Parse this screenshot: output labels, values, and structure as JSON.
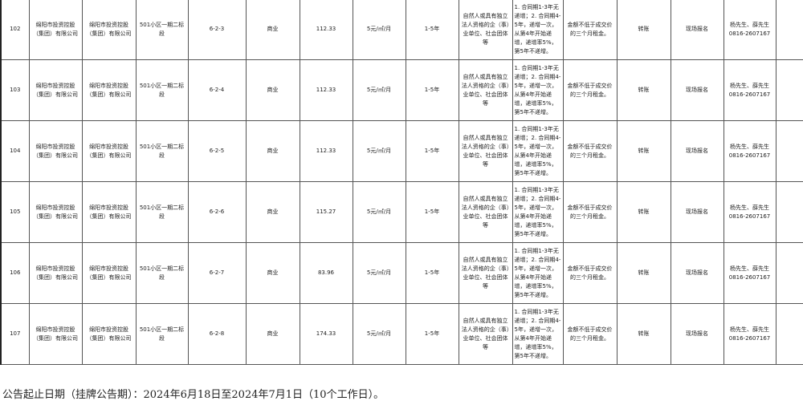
{
  "rows": [
    {
      "no": "102",
      "lessor": "绵阳市投资控股（集团）有限公司",
      "owner": "绵阳市投资控股（集团）有限公司",
      "project": "501小区一期二标段",
      "unit": "6-2-3",
      "use": "商业",
      "area": "112.33",
      "price": "5元/㎡/月",
      "term": "1-5年",
      "qualification": "自然人或具有独立法人资格的企（事）业单位、社会团体等",
      "increase": "1. 合同期1-3年无递增；2. 合同期4-5年，递增一次，从第4年开始递增，递增率5%，第5年不递增。",
      "deposit": "金额不低于成交价的三个月租金。",
      "mode": "转账",
      "signup": "现场报名",
      "contact": "杨先生、薛先生 0816-2607167"
    },
    {
      "no": "103",
      "lessor": "绵阳市投资控股（集团）有限公司",
      "owner": "绵阳市投资控股（集团）有限公司",
      "project": "501小区一期二标段",
      "unit": "6-2-4",
      "use": "商业",
      "area": "112.33",
      "price": "5元/㎡/月",
      "term": "1-5年",
      "qualification": "自然人或具有独立法人资格的企（事）业单位、社会团体等",
      "increase": "1. 合同期1-3年无递增；2. 合同期4-5年，递增一次，从第4年开始递增，递增率5%，第5年不递增。",
      "deposit": "金额不低于成交价的三个月租金。",
      "mode": "转账",
      "signup": "现场报名",
      "contact": "杨先生、薛先生 0816-2607167"
    },
    {
      "no": "104",
      "lessor": "绵阳市投资控股（集团）有限公司",
      "owner": "绵阳市投资控股（集团）有限公司",
      "project": "501小区一期二标段",
      "unit": "6-2-5",
      "use": "商业",
      "area": "112.33",
      "price": "5元/㎡/月",
      "term": "1-5年",
      "qualification": "自然人或具有独立法人资格的企（事）业单位、社会团体等",
      "increase": "1. 合同期1-3年无递增；2. 合同期4-5年，递增一次，从第4年开始递增，递增率5%，第5年不递增。",
      "deposit": "金额不低于成交价的三个月租金。",
      "mode": "转账",
      "signup": "现场报名",
      "contact": "杨先生、薛先生 0816-2607167"
    },
    {
      "no": "105",
      "lessor": "绵阳市投资控股（集团）有限公司",
      "owner": "绵阳市投资控股（集团）有限公司",
      "project": "501小区一期二标段",
      "unit": "6-2-6",
      "use": "商业",
      "area": "115.27",
      "price": "5元/㎡/月",
      "term": "1-5年",
      "qualification": "自然人或具有独立法人资格的企（事）业单位、社会团体等",
      "increase": "1. 合同期1-3年无递增；2. 合同期4-5年，递增一次，从第4年开始递增，递增率5%，第5年不递增。",
      "deposit": "金额不低于成交价的三个月租金。",
      "mode": "转账",
      "signup": "现场报名",
      "contact": "杨先生、薛先生 0816-2607167"
    },
    {
      "no": "106",
      "lessor": "绵阳市投资控股（集团）有限公司",
      "owner": "绵阳市投资控股（集团）有限公司",
      "project": "501小区一期二标段",
      "unit": "6-2-7",
      "use": "商业",
      "area": "83.96",
      "price": "5元/㎡/月",
      "term": "1-5年",
      "qualification": "自然人或具有独立法人资格的企（事）业单位、社会团体等",
      "increase": "1. 合同期1-3年无递增；2. 合同期4-5年，递增一次，从第4年开始递增，递增率5%，第5年不递增。",
      "deposit": "金额不低于成交价的三个月租金。",
      "mode": "转账",
      "signup": "现场报名",
      "contact": "杨先生、薛先生 0816-2607167"
    },
    {
      "no": "107",
      "lessor": "绵阳市投资控股（集团）有限公司",
      "owner": "绵阳市投资控股（集团）有限公司",
      "project": "501小区一期二标段",
      "unit": "6-2-8",
      "use": "商业",
      "area": "174.33",
      "price": "5元/㎡/月",
      "term": "1-5年",
      "qualification": "自然人或具有独立法人资格的企（事）业单位、社会团体等",
      "increase": "1. 合同期1-3年无递增；2. 合同期4-5年，递增一次，从第4年开始递增，递增率5%，第5年不递增。",
      "deposit": "金额不低于成交价的三个月租金。",
      "mode": "转账",
      "signup": "现场报名",
      "contact": "杨先生、薛先生 0816-2607167"
    }
  ],
  "footer": "公告起止日期（挂牌公告期）：2024年6月18日至2024年7月1日（10个工作日）。"
}
